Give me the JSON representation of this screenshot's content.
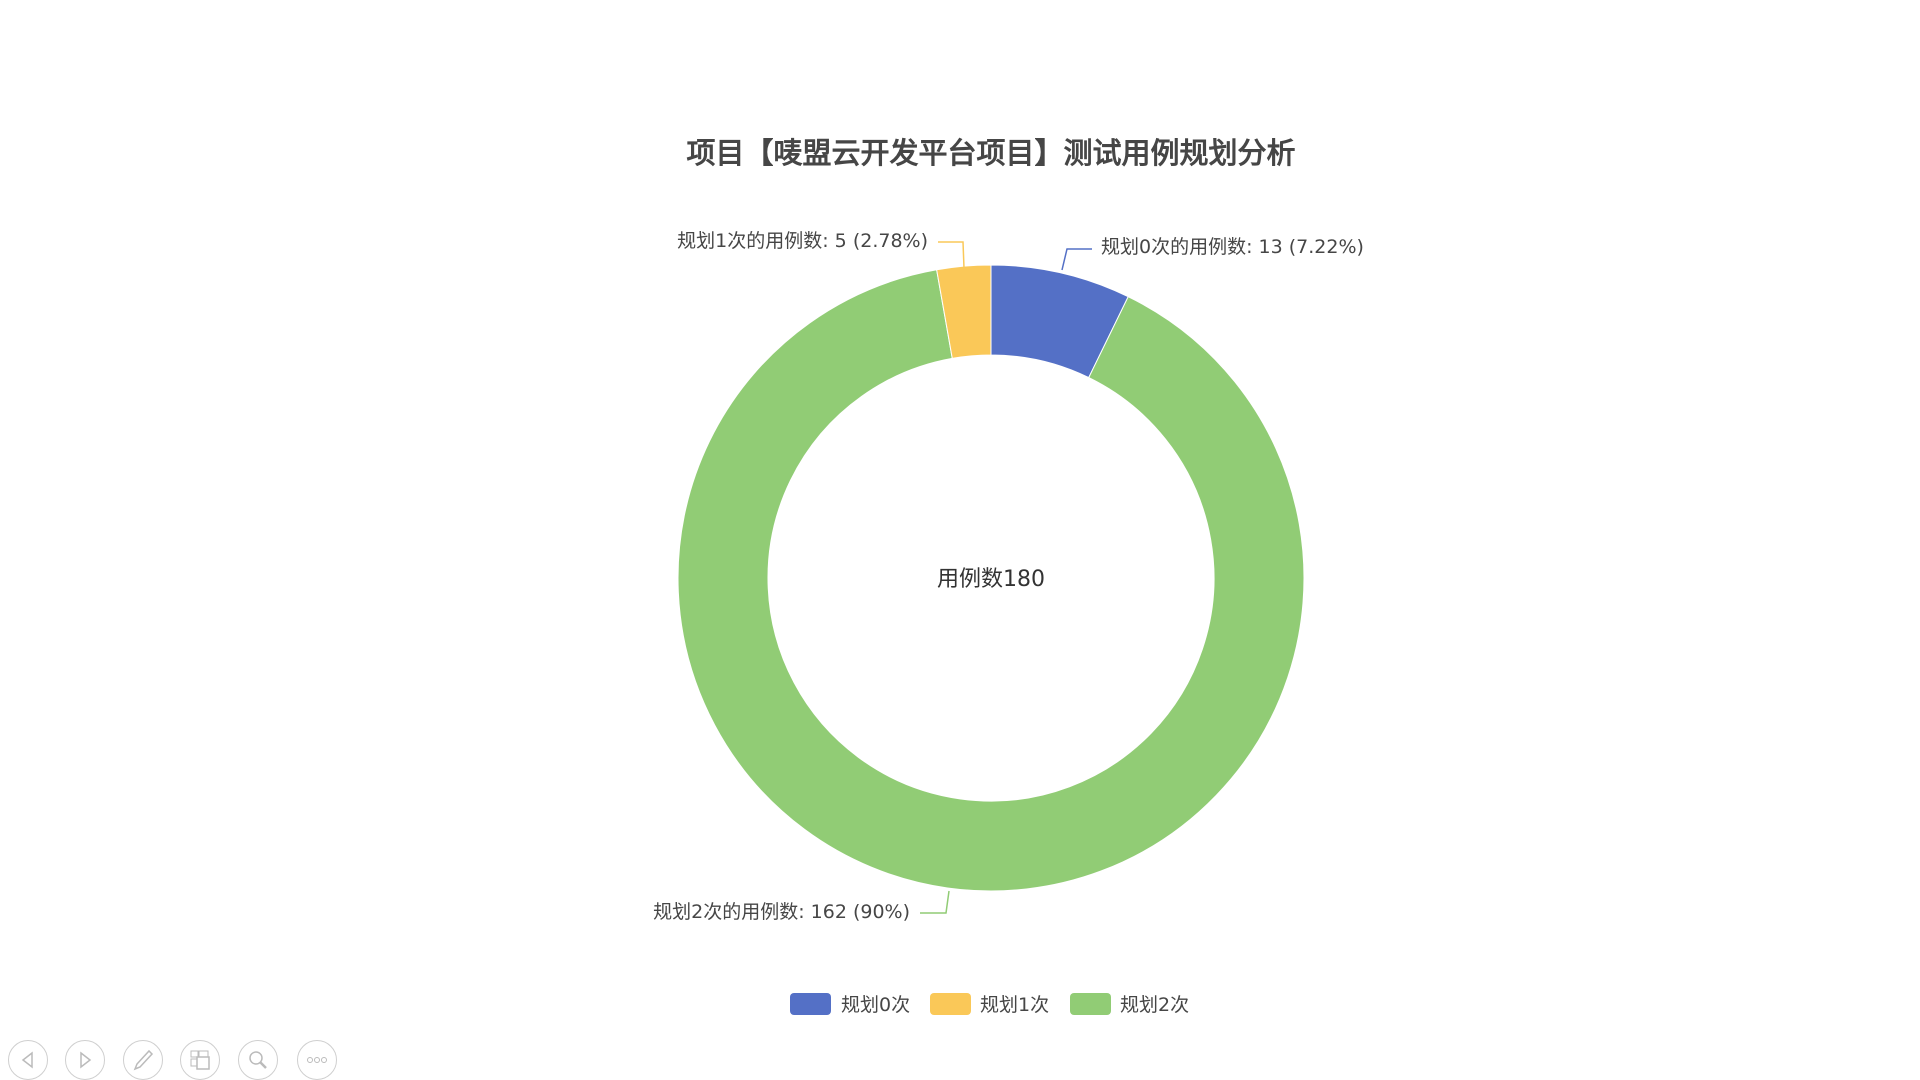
{
  "chart_data": {
    "type": "pie",
    "variant": "donut",
    "title": "项目【唛盟云开发平台项目】测试用例规划分析",
    "center_label": "用例数180",
    "slices": [
      {
        "name": "规划0次",
        "value": 13,
        "percent": "7.22%",
        "label": "规划0次的用例数: 13  (7.22%)",
        "color": "#5470c6"
      },
      {
        "name": "规划2次",
        "value": 162,
        "percent": "90%",
        "label": "规划2次的用例数: 162  (90%)",
        "color": "#91cc75"
      },
      {
        "name": "规划1次",
        "value": 5,
        "percent": "2.78%",
        "label": "规划1次的用例数: 5  (2.78%)",
        "color": "#fac858"
      }
    ],
    "legend": {
      "placement": "bottom",
      "items": [
        "规划0次",
        "规划1次",
        "规划2次"
      ]
    }
  },
  "controls": [
    "previous-icon",
    "next-icon",
    "pen-icon",
    "thumbnails-icon",
    "zoom-icon",
    "more-icon"
  ]
}
